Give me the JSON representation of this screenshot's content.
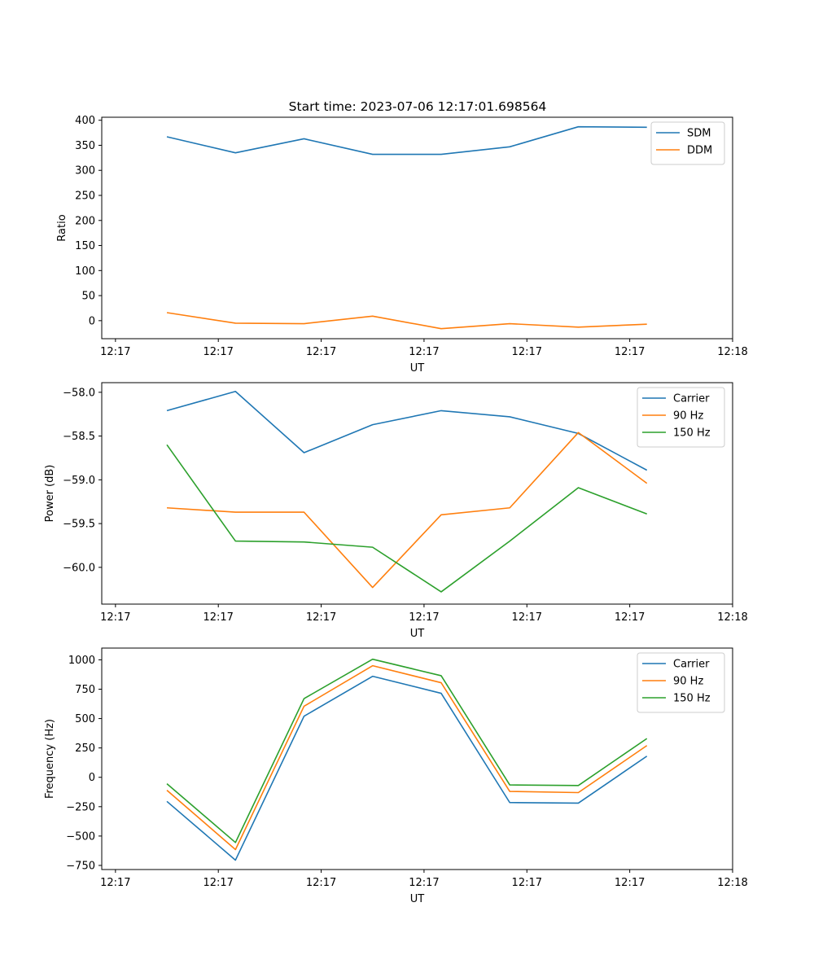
{
  "figure_title": "Start time: 2023-07-06 12:17:01.698564",
  "chart_data": [
    {
      "type": "line",
      "title": "Start time: 2023-07-06 12:17:01.698564",
      "xlabel": "UT",
      "ylabel": "Ratio",
      "x": [
        0,
        1,
        2,
        3,
        4,
        5,
        6,
        7
      ],
      "x_ticks": [
        -0.75,
        0.75,
        2.25,
        3.75,
        5.25,
        6.75,
        8.25
      ],
      "x_tick_labels": [
        "12:17",
        "12:17",
        "12:17",
        "12:17",
        "12:17",
        "12:17",
        "12:18"
      ],
      "xlim": [
        -0.95,
        8.25
      ],
      "ylim": [
        -36,
        406
      ],
      "y_ticks": [
        0,
        50,
        100,
        150,
        200,
        250,
        300,
        350,
        400
      ],
      "y_tick_labels": [
        "0",
        "50",
        "100",
        "150",
        "200",
        "250",
        "300",
        "350",
        "400"
      ],
      "legend": "top-right",
      "series": [
        {
          "name": "SDM",
          "color": "#1f77b4",
          "values": [
            367,
            335,
            363,
            332,
            332,
            347,
            387,
            386
          ]
        },
        {
          "name": "DDM",
          "color": "#ff7f0e",
          "values": [
            16,
            -5,
            -6,
            9,
            -16,
            -6,
            -13,
            -7
          ]
        }
      ]
    },
    {
      "type": "line",
      "title": "",
      "xlabel": "UT",
      "ylabel": "Power (dB)",
      "x": [
        0,
        1,
        2,
        3,
        4,
        5,
        6,
        7
      ],
      "x_ticks": [
        -0.75,
        0.75,
        2.25,
        3.75,
        5.25,
        6.75,
        8.25
      ],
      "x_tick_labels": [
        "12:17",
        "12:17",
        "12:17",
        "12:17",
        "12:17",
        "12:17",
        "12:18"
      ],
      "xlim": [
        -0.95,
        8.25
      ],
      "ylim": [
        -60.42,
        -57.89
      ],
      "y_ticks": [
        -60.0,
        -59.5,
        -59.0,
        -58.5,
        -58.0
      ],
      "y_tick_labels": [
        "−60.0",
        "−59.5",
        "−59.0",
        "−58.5",
        "−58.0"
      ],
      "legend": "top-right",
      "series": [
        {
          "name": "Carrier",
          "color": "#1f77b4",
          "values": [
            -58.21,
            -57.99,
            -58.69,
            -58.37,
            -58.21,
            -58.28,
            -58.47,
            -58.89
          ]
        },
        {
          "name": "90 Hz",
          "color": "#ff7f0e",
          "values": [
            -59.32,
            -59.37,
            -59.37,
            -60.23,
            -59.4,
            -59.32,
            -58.46,
            -59.04
          ]
        },
        {
          "name": "150 Hz",
          "color": "#2ca02c",
          "values": [
            -58.6,
            -59.7,
            -59.71,
            -59.77,
            -60.28,
            -59.7,
            -59.09,
            -59.39
          ]
        }
      ]
    },
    {
      "type": "line",
      "title": "",
      "xlabel": "UT",
      "ylabel": "Frequency (Hz)",
      "x": [
        0,
        1,
        2,
        3,
        4,
        5,
        6,
        7
      ],
      "x_ticks": [
        -0.75,
        0.75,
        2.25,
        3.75,
        5.25,
        6.75,
        8.25
      ],
      "x_tick_labels": [
        "12:17",
        "12:17",
        "12:17",
        "12:17",
        "12:17",
        "12:17",
        "12:18"
      ],
      "xlim": [
        -0.95,
        8.25
      ],
      "ylim": [
        -785,
        1100
      ],
      "y_ticks": [
        -750,
        -500,
        -250,
        0,
        250,
        500,
        750,
        1000
      ],
      "y_tick_labels": [
        "−750",
        "−500",
        "−250",
        "0",
        "250",
        "500",
        "750",
        "1000"
      ],
      "legend": "top-right",
      "series": [
        {
          "name": "Carrier",
          "color": "#1f77b4",
          "values": [
            -205,
            -705,
            520,
            860,
            715,
            -215,
            -220,
            180
          ]
        },
        {
          "name": "90 Hz",
          "color": "#ff7f0e",
          "values": [
            -110,
            -615,
            605,
            950,
            805,
            -120,
            -130,
            270
          ]
        },
        {
          "name": "150 Hz",
          "color": "#2ca02c",
          "values": [
            -55,
            -555,
            670,
            1005,
            865,
            -65,
            -70,
            330
          ]
        }
      ]
    }
  ]
}
